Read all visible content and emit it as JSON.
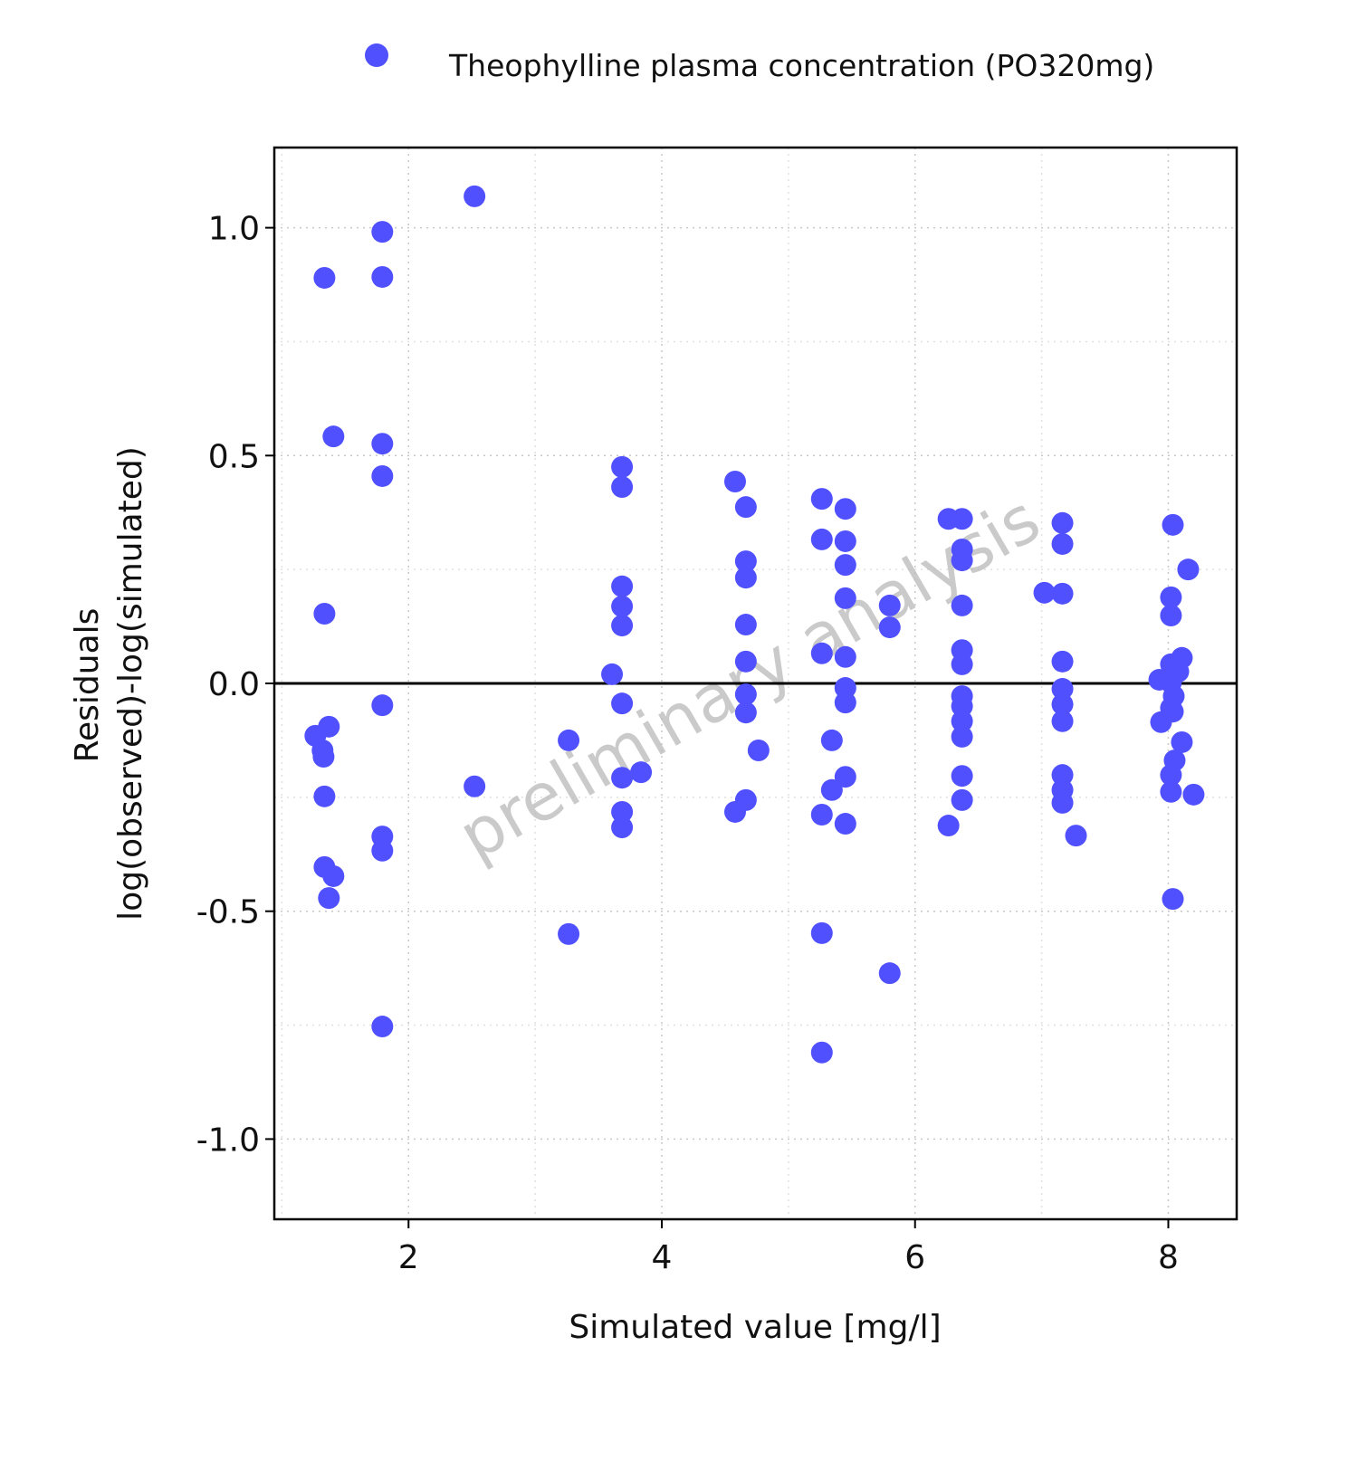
{
  "chart_data": {
    "type": "scatter",
    "title": "",
    "xlabel": "Simulated value [mg/l]",
    "ylabel_lines": [
      "Residuals",
      "log(observed)-log(simulated)"
    ],
    "xlim": [
      0.94,
      8.54
    ],
    "ylim": [
      -1.176,
      1.176
    ],
    "xticks": [
      2,
      4,
      6,
      8
    ],
    "xtick_labels": [
      "2",
      "4",
      "6",
      "8"
    ],
    "yticks": [
      1.0,
      0.5,
      0.0,
      -0.5,
      -1.0
    ],
    "ytick_labels": [
      "1.0",
      "0.5",
      "0.0",
      "-0.5",
      "-1.0"
    ],
    "grid": true,
    "reference_line_y": 0,
    "legend_position": "top",
    "watermark": "preliminary analysis",
    "series": [
      {
        "name": "Theophylline plasma concentration (PO320mg)",
        "color": "#5050ff",
        "points": [
          [
            1.336,
            0.89
          ],
          [
            1.407,
            0.542
          ],
          [
            1.336,
            0.153
          ],
          [
            1.264,
            -0.115
          ],
          [
            1.371,
            -0.095
          ],
          [
            1.321,
            -0.147
          ],
          [
            1.329,
            -0.161
          ],
          [
            1.336,
            -0.248
          ],
          [
            1.336,
            -0.403
          ],
          [
            1.407,
            -0.423
          ],
          [
            1.371,
            -0.471
          ],
          [
            1.793,
            0.991
          ],
          [
            1.793,
            0.892
          ],
          [
            1.793,
            0.526
          ],
          [
            1.793,
            0.455
          ],
          [
            1.793,
            -0.048
          ],
          [
            1.793,
            -0.336
          ],
          [
            1.793,
            -0.367
          ],
          [
            1.793,
            -0.753
          ],
          [
            2.521,
            1.069
          ],
          [
            2.521,
            -0.226
          ],
          [
            3.264,
            -0.125
          ],
          [
            3.264,
            -0.55
          ],
          [
            3.607,
            0.02
          ],
          [
            3.686,
            0.475
          ],
          [
            3.686,
            0.431
          ],
          [
            3.686,
            0.213
          ],
          [
            3.686,
            0.169
          ],
          [
            3.686,
            0.127
          ],
          [
            3.686,
            -0.044
          ],
          [
            3.686,
            -0.207
          ],
          [
            3.686,
            -0.282
          ],
          [
            3.686,
            -0.316
          ],
          [
            3.836,
            -0.195
          ],
          [
            4.579,
            0.443
          ],
          [
            4.579,
            -0.282
          ],
          [
            4.664,
            0.387
          ],
          [
            4.664,
            0.268
          ],
          [
            4.664,
            0.232
          ],
          [
            4.664,
            0.129
          ],
          [
            4.664,
            0.048
          ],
          [
            4.664,
            -0.024
          ],
          [
            4.664,
            -0.064
          ],
          [
            4.664,
            -0.256
          ],
          [
            4.764,
            -0.147
          ],
          [
            5.264,
            0.405
          ],
          [
            5.264,
            0.316
          ],
          [
            5.264,
            0.066
          ],
          [
            5.264,
            -0.288
          ],
          [
            5.264,
            -0.548
          ],
          [
            5.264,
            -0.81
          ],
          [
            5.343,
            -0.125
          ],
          [
            5.343,
            -0.234
          ],
          [
            5.45,
            0.383
          ],
          [
            5.45,
            0.312
          ],
          [
            5.45,
            0.26
          ],
          [
            5.45,
            0.187
          ],
          [
            5.45,
            0.058
          ],
          [
            5.45,
            -0.01
          ],
          [
            5.45,
            -0.042
          ],
          [
            5.45,
            -0.205
          ],
          [
            5.45,
            -0.308
          ],
          [
            5.8,
            0.171
          ],
          [
            5.8,
            0.123
          ],
          [
            5.8,
            -0.636
          ],
          [
            6.264,
            0.361
          ],
          [
            6.264,
            -0.312
          ],
          [
            6.371,
            0.361
          ],
          [
            6.371,
            0.294
          ],
          [
            6.371,
            0.27
          ],
          [
            6.371,
            0.171
          ],
          [
            6.371,
            0.073
          ],
          [
            6.371,
            0.042
          ],
          [
            6.371,
            -0.028
          ],
          [
            6.371,
            -0.05
          ],
          [
            6.371,
            -0.083
          ],
          [
            6.371,
            -0.117
          ],
          [
            6.371,
            -0.203
          ],
          [
            6.371,
            -0.256
          ],
          [
            7.021,
            0.199
          ],
          [
            7.164,
            0.352
          ],
          [
            7.164,
            0.306
          ],
          [
            7.164,
            0.197
          ],
          [
            7.164,
            0.048
          ],
          [
            7.164,
            -0.012
          ],
          [
            7.164,
            -0.046
          ],
          [
            7.164,
            -0.083
          ],
          [
            7.164,
            -0.201
          ],
          [
            7.164,
            -0.234
          ],
          [
            7.164,
            -0.262
          ],
          [
            7.271,
            -0.334
          ],
          [
            7.929,
            0.008
          ],
          [
            7.943,
            -0.085
          ],
          [
            8.036,
            0.348
          ],
          [
            8.021,
            0.189
          ],
          [
            8.021,
            0.149
          ],
          [
            8.021,
            0.042
          ],
          [
            8.021,
            0.002
          ],
          [
            8.021,
            -0.054
          ],
          [
            8.021,
            -0.201
          ],
          [
            8.021,
            -0.238
          ],
          [
            8.036,
            -0.473
          ],
          [
            8.05,
            -0.169
          ],
          [
            8.043,
            -0.028
          ],
          [
            8.036,
            -0.062
          ],
          [
            8.079,
            0.026
          ],
          [
            8.107,
            0.056
          ],
          [
            8.107,
            -0.129
          ],
          [
            8.157,
            0.25
          ],
          [
            8.2,
            -0.244
          ]
        ]
      }
    ]
  }
}
